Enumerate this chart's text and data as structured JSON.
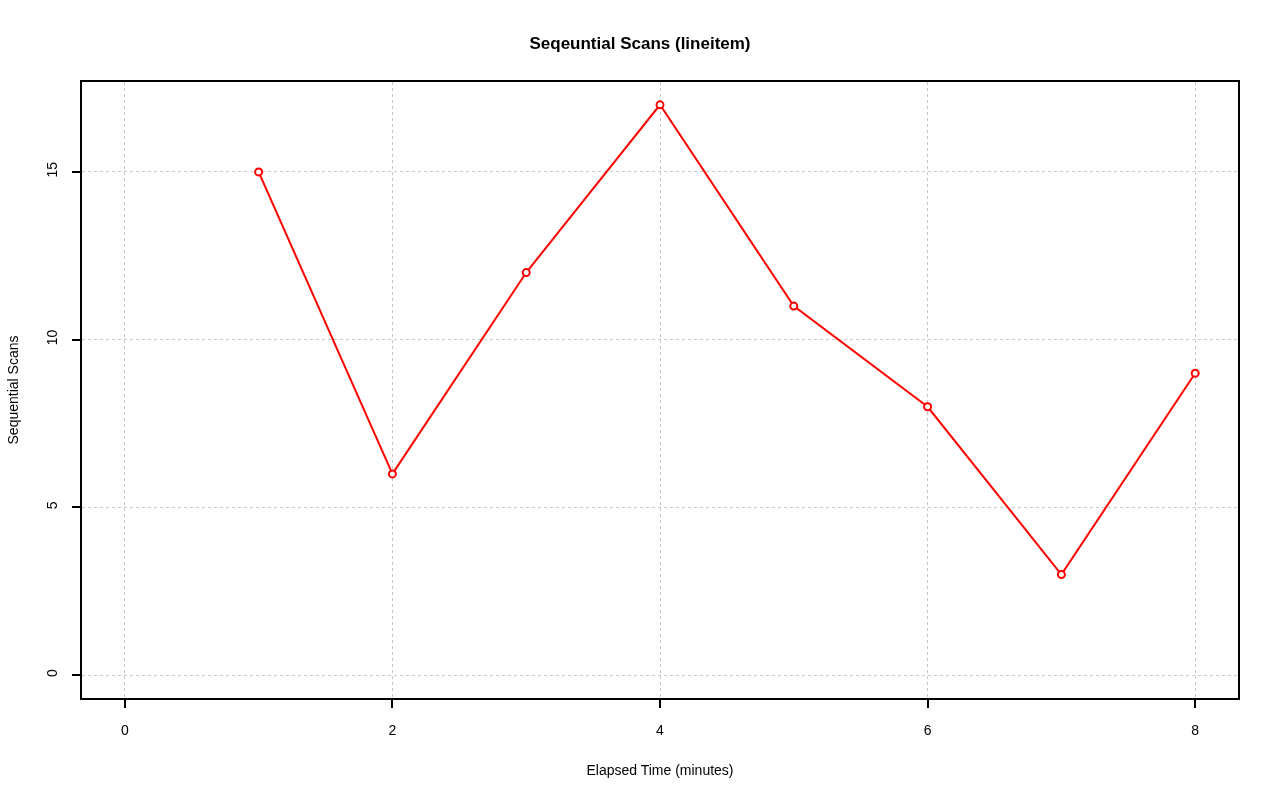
{
  "chart_data": {
    "type": "line",
    "title": "Seqeuntial Scans (lineitem)",
    "xlabel": "Elapsed Time (minutes)",
    "ylabel": "Sequential Scans",
    "x": [
      1,
      2,
      3,
      4,
      5,
      6,
      7,
      8
    ],
    "series": [
      {
        "color": "#ff0000",
        "values": [
          15,
          6,
          12,
          17,
          11,
          8,
          3,
          9
        ]
      }
    ],
    "xlim": [
      -0.32,
      8.32
    ],
    "ylim": [
      -0.68,
      17.68
    ],
    "xticks": [
      0,
      2,
      4,
      6,
      8
    ],
    "yticks": [
      0,
      5,
      10,
      15
    ],
    "grid": true,
    "marker": "circle",
    "line_style": "solid"
  }
}
